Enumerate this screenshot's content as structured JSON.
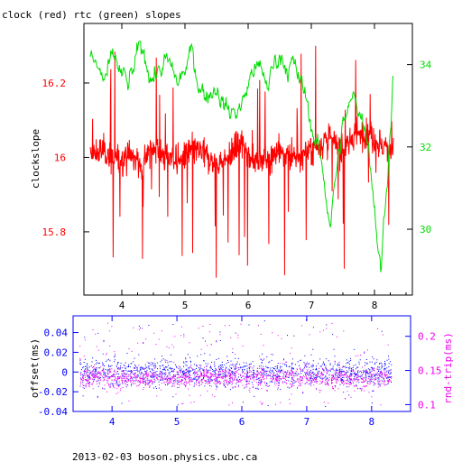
{
  "title": "clock (red) rtc (green) slopes",
  "footer": "2013-02-03  boson.physics.ubc.ca",
  "colors": {
    "clock": "#ff0000",
    "rtc": "#00dd00",
    "offset": "#0000ff",
    "roundtrip": "#ee00ee",
    "frame_bottom": "#0000ff"
  },
  "chart_data": [
    {
      "type": "line",
      "title": "clock (red) rtc (green) slopes",
      "xlabel": "",
      "ylabel": "clockslope",
      "y2label": "",
      "xlim": [
        3.4,
        8.6
      ],
      "ylim": [
        15.63,
        16.36
      ],
      "y2lim": [
        28.4,
        35.0
      ],
      "x_ticks": [
        "4",
        "5",
        "6",
        "7",
        "8"
      ],
      "y_ticks": [
        "15.8",
        "16",
        "16.2"
      ],
      "y2_ticks": [
        "30",
        "32",
        "34"
      ],
      "series": [
        {
          "color": "red",
          "axis": "left",
          "note": "dense noisy trace around 16.0 with occasional downward spikes",
          "x": [
            3.5,
            3.7,
            3.9,
            4.1,
            4.3,
            4.5,
            4.7,
            4.9,
            5.1,
            5.3,
            5.5,
            5.7,
            5.9,
            6.1,
            6.3,
            6.5,
            6.7,
            6.9,
            7.1,
            7.3,
            7.5,
            7.7,
            7.9,
            8.1,
            8.3
          ],
          "y": [
            16.0,
            16.02,
            15.99,
            16.01,
            15.98,
            16.03,
            16.0,
            15.99,
            16.02,
            16.01,
            15.98,
            16.0,
            16.04,
            15.99,
            16.0,
            16.02,
            15.99,
            16.01,
            16.03,
            16.05,
            16.02,
            16.06,
            16.07,
            16.03,
            16.02
          ]
        },
        {
          "color": "green",
          "axis": "right",
          "note": "slowly wandering trace between about 29 and 34.5",
          "x": [
            3.5,
            3.7,
            3.9,
            4.1,
            4.3,
            4.5,
            4.7,
            4.9,
            5.1,
            5.3,
            5.5,
            5.7,
            5.9,
            6.1,
            6.3,
            6.5,
            6.7,
            6.9,
            7.1,
            7.3,
            7.5,
            7.7,
            7.9,
            8.1,
            8.3
          ],
          "y": [
            34.2,
            33.6,
            34.0,
            33.4,
            34.3,
            33.8,
            34.0,
            33.5,
            34.2,
            33.3,
            33.6,
            32.8,
            33.0,
            34.0,
            33.5,
            34.3,
            34.0,
            33.2,
            32.0,
            30.3,
            32.5,
            33.2,
            32.4,
            29.0,
            33.8
          ]
        }
      ]
    },
    {
      "type": "scatter",
      "xlabel": "",
      "ylabel": "offset(ms)",
      "y2label": "rnd-trip(ms)",
      "xlim": [
        3.4,
        8.6
      ],
      "ylim": [
        -0.04,
        0.057
      ],
      "y2lim": [
        0.09,
        0.23
      ],
      "x_ticks": [
        "4",
        "5",
        "6",
        "7",
        "8"
      ],
      "y_ticks": [
        "-0.04",
        "-0.02",
        "0",
        "0.02",
        "0.04"
      ],
      "y2_ticks": [
        "0.1",
        "0.15",
        "0.2"
      ],
      "series": [
        {
          "color": "blue",
          "axis": "left",
          "note": "dense band of offset points mostly between -0.02 and 0.02, sparse outliers to about +/-0.05",
          "x_range": [
            3.5,
            8.3
          ],
          "band": [
            -0.02,
            0.02
          ]
        },
        {
          "color": "magenta",
          "axis": "right",
          "note": "round-trip points mostly 0.12 to 0.16 ms with scattered higher values",
          "x_range": [
            3.5,
            8.3
          ],
          "band": [
            0.12,
            0.16
          ]
        }
      ]
    }
  ]
}
